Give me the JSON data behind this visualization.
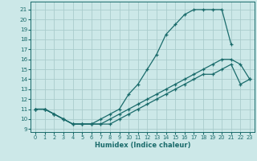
{
  "xlabel": "Humidex (Indice chaleur)",
  "background_color": "#cce8e8",
  "grid_color": "#aacccc",
  "line_color": "#1a6b6b",
  "xlim": [
    -0.5,
    23.5
  ],
  "ylim": [
    8.7,
    21.8
  ],
  "xticks": [
    0,
    1,
    2,
    3,
    4,
    5,
    6,
    7,
    8,
    9,
    10,
    11,
    12,
    13,
    14,
    15,
    16,
    17,
    18,
    19,
    20,
    21,
    22,
    23
  ],
  "yticks": [
    9,
    10,
    11,
    12,
    13,
    14,
    15,
    16,
    17,
    18,
    19,
    20,
    21
  ],
  "curve1_x": [
    0,
    1,
    2,
    3,
    4,
    5,
    6,
    7,
    8,
    9,
    10,
    11,
    12,
    13,
    14,
    15,
    16,
    17,
    18,
    19,
    20,
    21
  ],
  "curve1_y": [
    11,
    11,
    10.5,
    10,
    9.5,
    9.5,
    9.5,
    10,
    10.5,
    11,
    12.5,
    13.5,
    15,
    16.5,
    18.5,
    19.5,
    20.5,
    21,
    21,
    21,
    21,
    17.5
  ],
  "curve2_x": [
    0,
    1,
    2,
    3,
    4,
    5,
    6,
    7,
    8,
    9,
    10,
    11,
    12,
    13,
    14,
    15,
    16,
    17,
    18,
    19,
    20,
    21,
    22,
    23
  ],
  "curve2_y": [
    11,
    11,
    10.5,
    10,
    9.5,
    9.5,
    9.5,
    9.5,
    10,
    10.5,
    11,
    11.5,
    12,
    12.5,
    13,
    13.5,
    14,
    14.5,
    15,
    15.5,
    16,
    16,
    15.5,
    14
  ],
  "curve3_x": [
    0,
    1,
    2,
    3,
    4,
    5,
    6,
    7,
    8,
    9,
    10,
    11,
    12,
    13,
    14,
    15,
    16,
    17,
    18,
    19,
    20,
    21,
    22,
    23
  ],
  "curve3_y": [
    11,
    11,
    10.5,
    10,
    9.5,
    9.5,
    9.5,
    9.5,
    9.5,
    10,
    10.5,
    11,
    11.5,
    12,
    12.5,
    13,
    13.5,
    14,
    14.5,
    14.5,
    15,
    15.5,
    13.5,
    14
  ]
}
